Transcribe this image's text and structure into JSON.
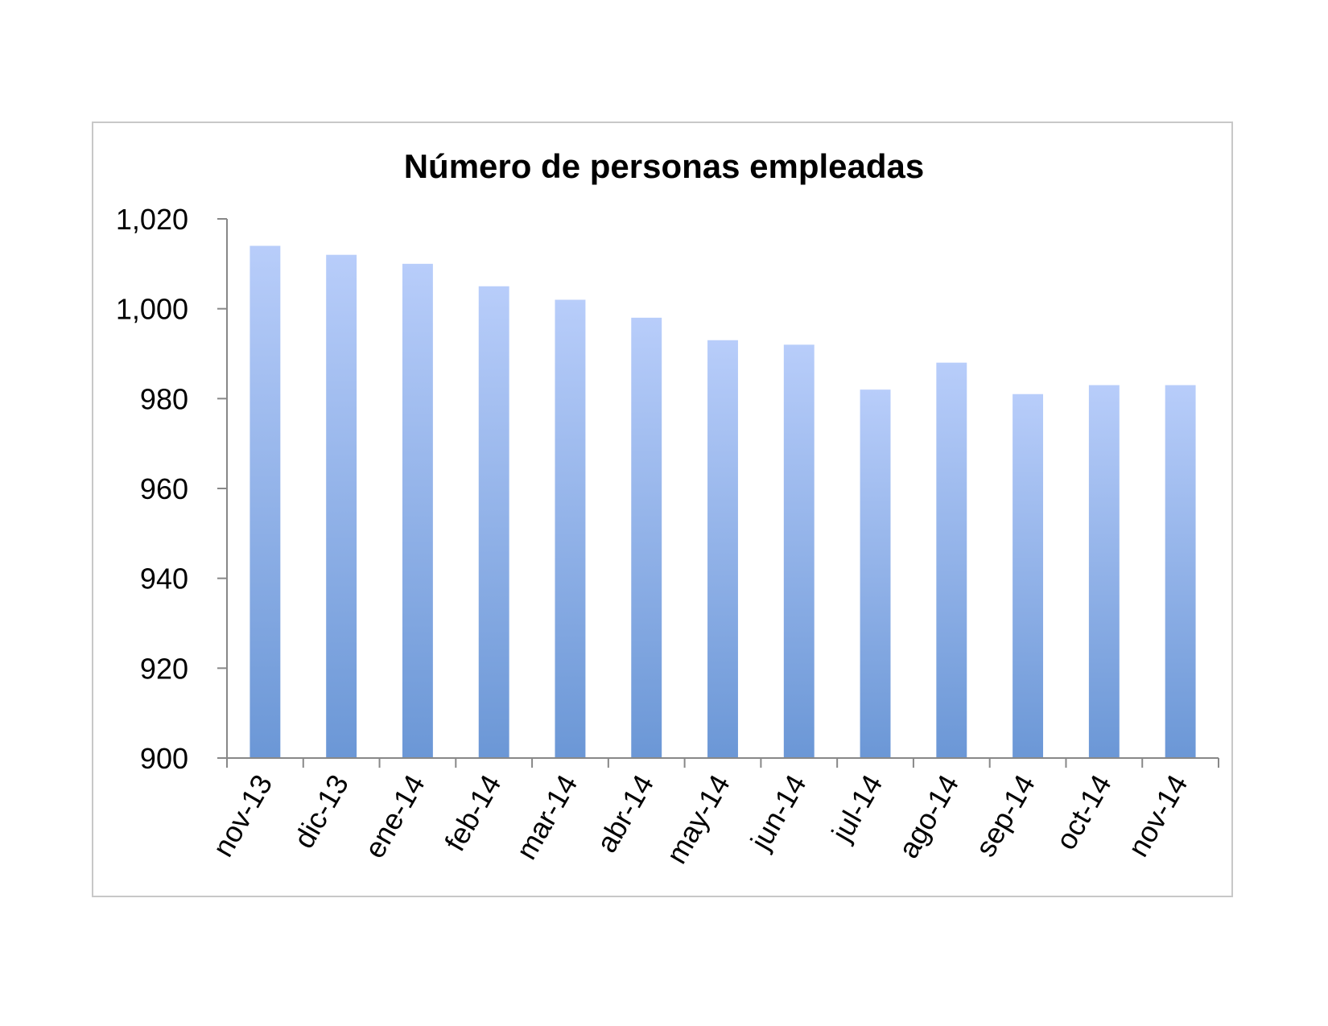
{
  "chart_data": {
    "type": "bar",
    "title": "Número de personas empleadas",
    "xlabel": "",
    "ylabel": "",
    "categories": [
      "nov-13",
      "dic-13",
      "ene-14",
      "feb-14",
      "mar-14",
      "abr-14",
      "may-14",
      "jun-14",
      "jul-14",
      "ago-14",
      "sep-14",
      "oct-14",
      "nov-14"
    ],
    "values": [
      1014,
      1012,
      1010,
      1005,
      1002,
      998,
      993,
      992,
      982,
      988,
      981,
      983,
      983
    ],
    "ylim": [
      900,
      1020
    ],
    "yticks": [
      900,
      920,
      940,
      960,
      980,
      1000,
      1020
    ],
    "ytick_labels": [
      "900",
      "920",
      "940",
      "960",
      "980",
      "1,000",
      "1,020"
    ],
    "grid": false,
    "legend": "none",
    "bar_color_top": "#b8cdfa",
    "bar_color_bottom": "#6b97d6"
  }
}
